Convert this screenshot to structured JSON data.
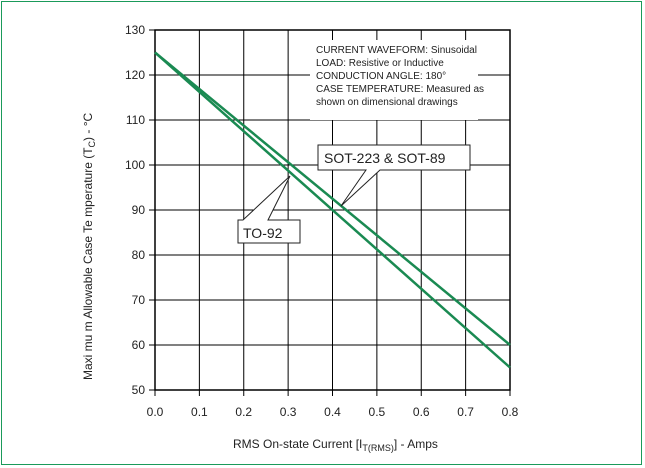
{
  "colors": {
    "frame": "#1a9a5a",
    "series": "#1a8a52",
    "grid": "#000000"
  },
  "chart_data": {
    "type": "line",
    "title": "",
    "xlabel": "RMS On-state Current [I",
    "xlabel_sub": "T(RMS)",
    "xlabel_suffix": "] - Amps",
    "ylabel": "Maxi mu m Allowable Case Te mperature (T",
    "ylabel_sub": "C",
    "ylabel_suffix": ") - °C",
    "xlim": [
      0.0,
      0.8
    ],
    "ylim": [
      50,
      130
    ],
    "x_ticks": [
      "0.0",
      "0.1",
      "0.2",
      "0.3",
      "0.4",
      "0.5",
      "0.6",
      "0.7",
      "0.8"
    ],
    "y_ticks": [
      "50",
      "60",
      "70",
      "80",
      "90",
      "100",
      "110",
      "120",
      "130"
    ],
    "grid": true,
    "series": [
      {
        "name": "SOT-223 & SOT-89",
        "x": [
          0.0,
          0.8
        ],
        "y": [
          125,
          60
        ]
      },
      {
        "name": "TO-92",
        "x": [
          0.0,
          0.8
        ],
        "y": [
          125,
          55
        ]
      }
    ],
    "annotations": {
      "conditions": [
        "CURRENT WAVEFORM: Sinusoidal",
        "LOAD: Resistive or Inductive",
        "CONDUCTION ANGLE: 180°",
        "CASE TEMPERATURE: Measured as",
        "shown on dimensional drawings"
      ]
    }
  }
}
